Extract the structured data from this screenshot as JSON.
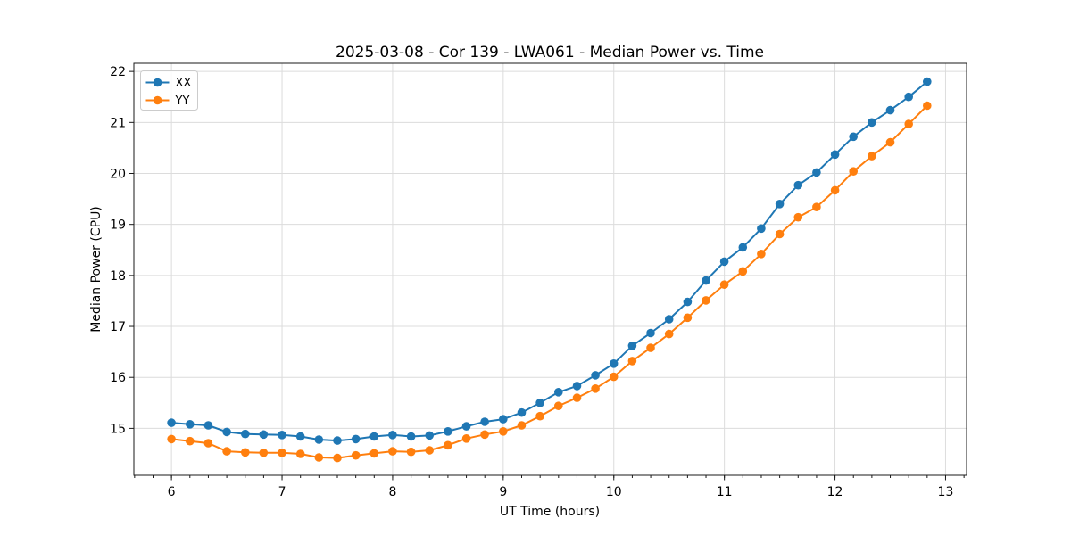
{
  "window": {
    "background": "#ffffff"
  },
  "chart_data": {
    "type": "line",
    "title": "2025-03-08 - Cor 139 - LWA061 - Median Power vs. Time",
    "xlabel": "UT Time (hours)",
    "ylabel": "Median Power (CPU)",
    "xlim": [
      5.66,
      13.19
    ],
    "ylim": [
      14.08,
      22.16
    ],
    "xticks": [
      6,
      7,
      8,
      9,
      10,
      11,
      12,
      13
    ],
    "yticks": [
      15,
      16,
      17,
      18,
      19,
      20,
      21,
      22
    ],
    "x_minor_tick_step": 0.16667,
    "grid": true,
    "legend_position": "upper left",
    "x": [
      6.0,
      6.167,
      6.333,
      6.5,
      6.667,
      6.833,
      7.0,
      7.167,
      7.333,
      7.5,
      7.667,
      7.833,
      8.0,
      8.167,
      8.333,
      8.5,
      8.667,
      8.833,
      9.0,
      9.167,
      9.333,
      9.5,
      9.667,
      9.833,
      10.0,
      10.167,
      10.333,
      10.5,
      10.667,
      10.833,
      11.0,
      11.167,
      11.333,
      11.5,
      11.667,
      11.833,
      12.0,
      12.167,
      12.333,
      12.5,
      12.667,
      12.833
    ],
    "series": [
      {
        "name": "XX",
        "color": "#1f77b4",
        "marker": "circle",
        "values": [
          15.11,
          15.08,
          15.06,
          14.93,
          14.89,
          14.88,
          14.87,
          14.84,
          14.78,
          14.76,
          14.79,
          14.84,
          14.87,
          14.84,
          14.86,
          14.94,
          15.04,
          15.13,
          15.18,
          15.31,
          15.5,
          15.71,
          15.83,
          16.04,
          16.27,
          16.62,
          16.87,
          17.14,
          17.48,
          17.9,
          18.27,
          18.55,
          18.92,
          19.4,
          19.77,
          20.02,
          20.37,
          20.72,
          21.0,
          21.24,
          21.5,
          21.8
        ]
      },
      {
        "name": "YY",
        "color": "#ff7f0e",
        "marker": "circle",
        "values": [
          14.79,
          14.75,
          14.71,
          14.55,
          14.53,
          14.52,
          14.52,
          14.5,
          14.43,
          14.42,
          14.47,
          14.51,
          14.55,
          14.54,
          14.57,
          14.67,
          14.8,
          14.88,
          14.94,
          15.06,
          15.24,
          15.44,
          15.6,
          15.78,
          16.01,
          16.32,
          16.58,
          16.85,
          17.17,
          17.51,
          17.82,
          18.08,
          18.42,
          18.81,
          19.14,
          19.34,
          19.67,
          20.04,
          20.34,
          20.61,
          20.97,
          21.33
        ]
      }
    ],
    "style": {
      "grid_color": "#dcdcdc",
      "spine_color": "#1a1a1a",
      "marker_radius": 4.8
    }
  }
}
